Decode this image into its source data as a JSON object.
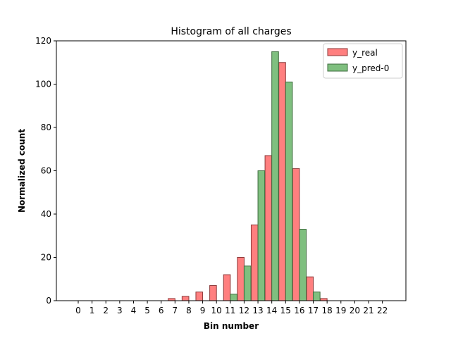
{
  "chart_data": {
    "type": "bar",
    "title": "Histogram of all charges",
    "xlabel": "Bin number",
    "ylabel": "Normalized count",
    "categories": [
      "0",
      "1",
      "2",
      "3",
      "4",
      "5",
      "6",
      "7",
      "8",
      "9",
      "10",
      "11",
      "12",
      "13",
      "14",
      "15",
      "16",
      "17",
      "18",
      "19",
      "20",
      "21",
      "22"
    ],
    "series": [
      {
        "name": "y_real",
        "color": "#ff7f7f",
        "edge_color": "#8c3a3a",
        "values": [
          0,
          0,
          0,
          0,
          0,
          0,
          0,
          1,
          2,
          4,
          7,
          12,
          20,
          35,
          67,
          110,
          61,
          11,
          1,
          0,
          0,
          0,
          0
        ]
      },
      {
        "name": "y_pred-0",
        "color": "#7fbf7f",
        "edge_color": "#3d6b3d",
        "values": [
          0,
          0,
          0,
          0,
          0,
          0,
          0,
          0,
          0,
          0,
          0,
          3,
          16,
          60,
          115,
          101,
          33,
          4,
          0,
          0,
          0,
          0,
          0
        ]
      }
    ],
    "ylim": [
      0,
      120
    ],
    "yticks": [
      0,
      20,
      40,
      60,
      80,
      100,
      120
    ],
    "grid": false,
    "legend_position": "top-right"
  }
}
